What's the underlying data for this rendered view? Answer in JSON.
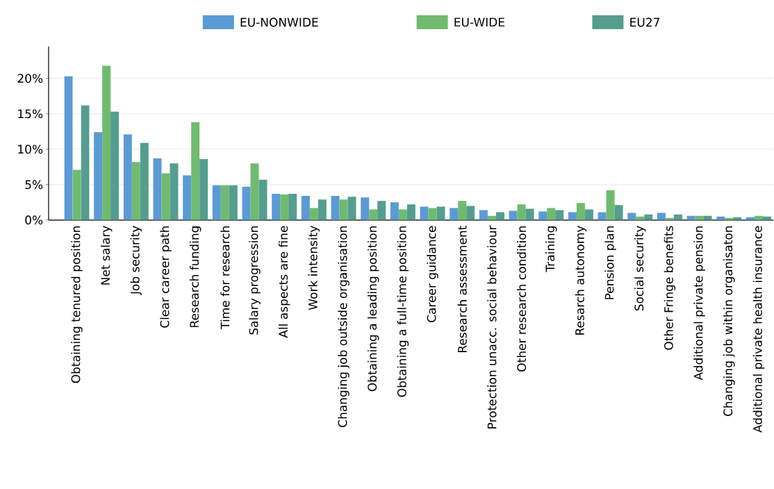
{
  "chart_data": {
    "type": "bar",
    "categories": [
      "Obtaining tenured position",
      "Net salary",
      "Job security",
      "Clear career path",
      "Research funding",
      "Time for research",
      "Salary progression",
      "All aspects are fine",
      "Work intensity",
      "Changing job outside organisation",
      "Obtaining a leading position",
      "Obtaining a full-time position",
      "Career guidance",
      "Research assessment",
      "Protection unacc. social behaviour",
      "Other research condition",
      "Training",
      "Resarch autonomy",
      "Pension plan",
      "Social security",
      "Other Fringe benefits",
      "Additional private pension",
      "Changing job within organisaton",
      "Additional private health insurance"
    ],
    "series": [
      {
        "name": "EU-NONWIDE",
        "color": "#5b9bd5",
        "values": [
          20.3,
          12.4,
          12.1,
          8.7,
          6.3,
          4.9,
          4.7,
          3.7,
          3.4,
          3.4,
          3.2,
          2.5,
          1.9,
          1.7,
          1.4,
          1.3,
          1.2,
          1.1,
          1.1,
          1.0,
          1.0,
          0.6,
          0.5,
          0.4
        ]
      },
      {
        "name": "EU-WIDE",
        "color": "#70bb6f",
        "values": [
          7.1,
          21.8,
          8.2,
          6.6,
          13.8,
          4.9,
          8.0,
          3.6,
          1.7,
          2.9,
          1.5,
          1.5,
          1.7,
          2.7,
          0.6,
          2.2,
          1.7,
          2.4,
          4.2,
          0.5,
          0.3,
          0.6,
          0.3,
          0.6
        ]
      },
      {
        "name": "EU27",
        "color": "#559e8f",
        "values": [
          16.2,
          15.3,
          10.9,
          8.0,
          8.6,
          4.9,
          5.7,
          3.7,
          2.9,
          3.3,
          2.7,
          2.2,
          1.9,
          2.0,
          1.1,
          1.6,
          1.4,
          1.5,
          2.1,
          0.8,
          0.8,
          0.6,
          0.4,
          0.5
        ]
      }
    ],
    "ylim": [
      0,
      24.5
    ],
    "yticks": [
      {
        "value": 0,
        "label": "0%"
      },
      {
        "value": 5,
        "label": "5%"
      },
      {
        "value": 10,
        "label": "10%"
      },
      {
        "value": 15,
        "label": "15%"
      },
      {
        "value": 20,
        "label": "20%"
      }
    ],
    "grid": "y",
    "legend": "top"
  }
}
